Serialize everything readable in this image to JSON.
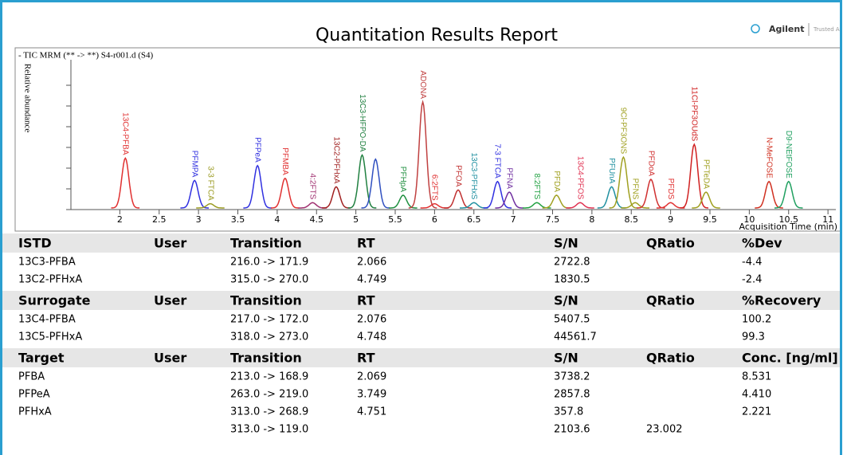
{
  "header": {
    "title": "Quantitation Results Report",
    "logo": "Agilent",
    "tagline": "Trusted Answers"
  },
  "chromatogram": {
    "type": "line",
    "label": "- TIC MRM (** -> **) S4-r001.d (S4)",
    "y_label": "Relative abundance",
    "x_label": "Acquisition Time (min)",
    "xlim": [
      1.5,
      11.1
    ],
    "ylim": [
      0,
      100
    ],
    "xticks": [
      2,
      2.5,
      3,
      3.5,
      4,
      4.5,
      5,
      5.5,
      6,
      6.5,
      7,
      7.5,
      8,
      8.5,
      9,
      9.5,
      10,
      10.5,
      11
    ],
    "peaks": {
      "labels": [
        "13C4-PFBA",
        "PFMPA",
        "3-3 FTCA",
        "PFPeA",
        "PFMBA",
        "4:2FTS",
        "13C2-PFHxA",
        "13C3-HFPO-DA",
        null,
        "PFHpA",
        "ADONA",
        "6:2FTS",
        "PFOA",
        "13C3-PFHxS",
        "7-3 FTCA",
        "PFNA",
        "8:2FTS",
        "PFDA",
        "13C4-PFOS",
        "PFUnA",
        "9Cl-PF3ONS",
        "PFNS",
        "PFDoA",
        "PFDS",
        "11Cl-PF3OUdS",
        "PFTeDA",
        "N-MeFOSE",
        "D9-NEtFOSE"
      ],
      "rt": [
        2.07,
        2.95,
        3.15,
        3.75,
        4.1,
        4.45,
        4.75,
        5.08,
        5.25,
        5.6,
        5.85,
        6.0,
        6.3,
        6.5,
        6.8,
        6.95,
        7.3,
        7.55,
        7.85,
        8.25,
        8.4,
        8.55,
        8.75,
        9.0,
        9.3,
        9.45,
        10.25,
        10.5
      ],
      "height": [
        47,
        26,
        4,
        40,
        28,
        5,
        20,
        50,
        46,
        12,
        100,
        4,
        17,
        5,
        25,
        15,
        5,
        12,
        5,
        20,
        48,
        5,
        27,
        5,
        60,
        15,
        25,
        25
      ],
      "colors": [
        "#e03030",
        "#3030e0",
        "#9a9a20",
        "#3030e0",
        "#e03030",
        "#a03070",
        "#a02020",
        "#208040",
        "#3050c0",
        "#209040",
        "#c04040",
        "#e03030",
        "#c03030",
        "#2090a0",
        "#3030e0",
        "#7030a0",
        "#20a040",
        "#a0a020",
        "#e03050",
        "#2090a0",
        "#a0a020",
        "#a0a020",
        "#d03030",
        "#e03030",
        "#d02020",
        "#a0a020",
        "#d03020",
        "#20a060"
      ]
    }
  },
  "sections": [
    {
      "columns": [
        "ISTD",
        "User",
        "Transition",
        "RT",
        "S/N",
        "QRatio",
        "%Dev"
      ],
      "rows": [
        [
          "13C3-PFBA",
          null,
          "216.0 -> 171.9",
          "2.066",
          "2722.8",
          null,
          "-4.4"
        ],
        [
          "13C2-PFHxA",
          null,
          "315.0 -> 270.0",
          "4.749",
          "1830.5",
          null,
          "-2.4"
        ]
      ]
    },
    {
      "columns": [
        "Surrogate",
        "User",
        "Transition",
        "RT",
        "S/N",
        "QRatio",
        "%Recovery"
      ],
      "rows": [
        [
          "13C4-PFBA",
          null,
          "217.0 -> 172.0",
          "2.076",
          "5407.5",
          null,
          "100.2"
        ],
        [
          "13C5-PFHxA",
          null,
          "318.0 -> 273.0",
          "4.748",
          "44561.7",
          null,
          "99.3"
        ]
      ]
    },
    {
      "columns": [
        "Target",
        "User",
        "Transition",
        "RT",
        "S/N",
        "QRatio",
        "Conc. [ng/ml]"
      ],
      "rows": [
        [
          "PFBA",
          null,
          "213.0 -> 168.9",
          "2.069",
          "3738.2",
          null,
          "8.531"
        ],
        [
          "PFPeA",
          null,
          "263.0 -> 219.0",
          "3.749",
          "2857.8",
          null,
          "4.410"
        ],
        [
          "PFHxA",
          null,
          "313.0 -> 268.9",
          "4.751",
          "357.8",
          null,
          "2.221"
        ],
        [
          null,
          null,
          "313.0 -> 119.0",
          null,
          "2103.6",
          "23.002",
          null
        ]
      ]
    }
  ]
}
